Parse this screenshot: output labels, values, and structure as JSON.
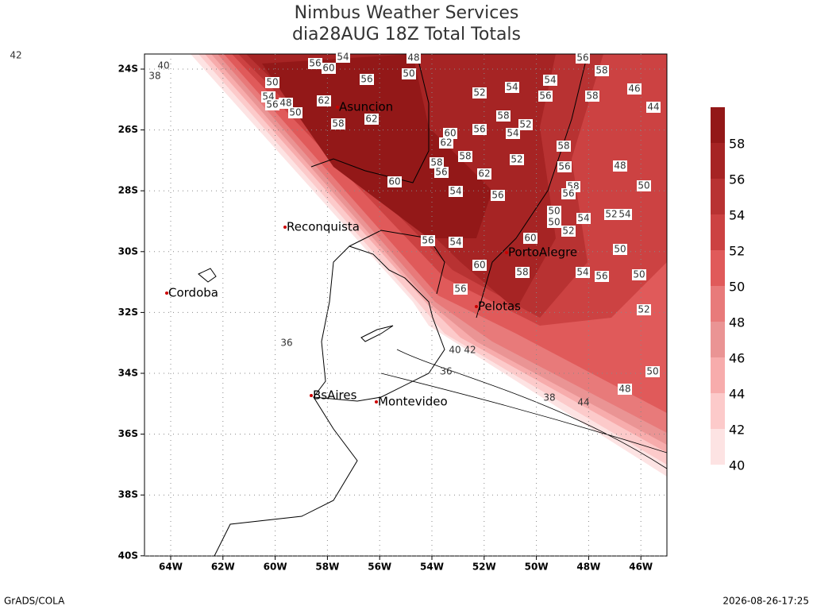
{
  "header": {
    "title": "Nimbus Weather Services",
    "subtitle": "dia28AUG 18Z Total Totals"
  },
  "lon_ticks": [
    "64W",
    "62W",
    "60W",
    "58W",
    "56W",
    "54W",
    "52W",
    "50W",
    "48W",
    "46W"
  ],
  "lat_ticks": [
    "24S",
    "26S",
    "28S",
    "30S",
    "32S",
    "34S",
    "36S",
    "38S",
    "40S"
  ],
  "cities": [
    "Asuncion",
    "Reconquista",
    "Cordoba",
    "PortoAlegre",
    "Pelotas",
    "BsAires",
    "Montevideo"
  ],
  "colorbar": {
    "levels": [
      40,
      42,
      44,
      46,
      48,
      50,
      52,
      54,
      56,
      58
    ],
    "colors": [
      "#fde3e3",
      "#fccaca",
      "#f7acac",
      "#ea9494",
      "#e87a7a",
      "#e05a5a",
      "#cc4242",
      "#b83232",
      "#a62424",
      "#931818"
    ]
  },
  "contour_labels": [
    56,
    60,
    54,
    48,
    50,
    56,
    50,
    54,
    48,
    56,
    50,
    62,
    58,
    62,
    52,
    54,
    54,
    56,
    58,
    56,
    58,
    46,
    44,
    60,
    56,
    58,
    52,
    54,
    62,
    58,
    52,
    58,
    56,
    48,
    58,
    56,
    62,
    54,
    60,
    56,
    50,
    54,
    52,
    54,
    50,
    58,
    56,
    60,
    60,
    58,
    56,
    54,
    56,
    50,
    50,
    52,
    56,
    54,
    52,
    50,
    50,
    48,
    36,
    36,
    40,
    42,
    38,
    44,
    42,
    40,
    38
  ],
  "footer": {
    "left": "GrADS/COLA",
    "right": "2026-08-26-17:25"
  }
}
